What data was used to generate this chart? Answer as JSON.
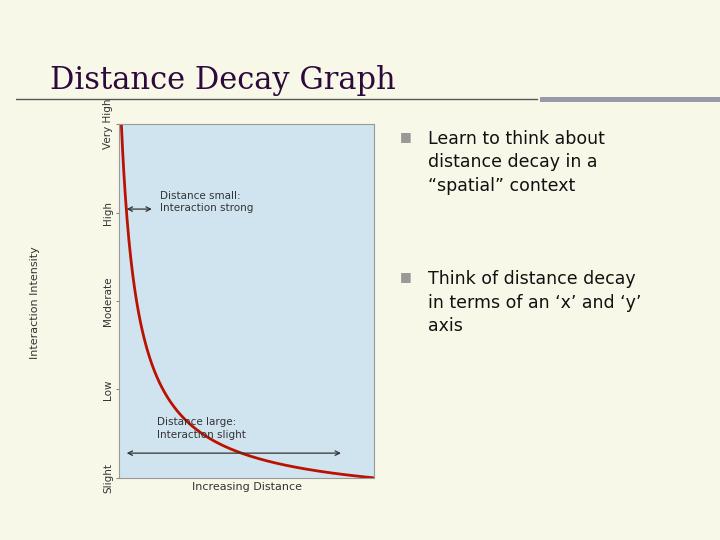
{
  "background_color": "#f8f8e8",
  "title": "Distance Decay Graph",
  "title_color": "#2d0a3c",
  "title_fontsize": 22,
  "divider_color": "#555555",
  "accent_bar_color": "#9999aa",
  "left_bar_color": "#a0a078",
  "bullet_icon_color": "#999999",
  "bullet1_line1": "Learn to think about",
  "bullet1_line2": "distance decay in a",
  "bullet1_line3": "“spatial” context",
  "bullet2_line1": "Think of distance decay",
  "bullet2_line2": "in terms of an ‘x’ and ‘y’",
  "bullet2_line3": "axis",
  "bullet_fontsize": 12.5,
  "bullet_color": "#111111",
  "graph_bg": "#d0e4f0",
  "graph_border_color": "#999999",
  "curve_color": "#bb1100",
  "curve_lw": 2.0,
  "ytick_labels": [
    "Slight",
    "Low",
    "Moderate",
    "High",
    "Very High"
  ],
  "ylabel_main": "Interaction Intensity",
  "xlabel_main": "Increasing Distance",
  "axis_label_fontsize": 8,
  "tick_fontsize": 7.5,
  "ann1_text_line1": "Distance small:",
  "ann1_text_line2": "Interaction strong",
  "ann2_text_line1": "Distance large:",
  "ann2_text_line2": "Interaction slight"
}
